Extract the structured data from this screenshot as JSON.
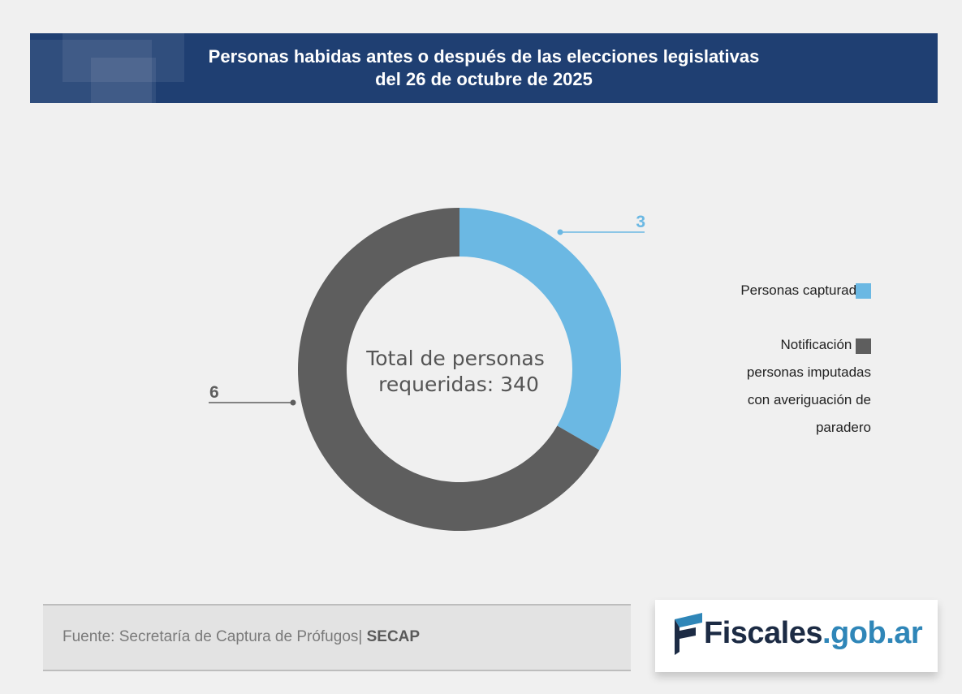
{
  "title": {
    "line1": "Personas habidas antes o después de las elecciones legislativas",
    "line2": "del 26 de octubre de 2025"
  },
  "chart_data": {
    "type": "pie",
    "donut": true,
    "center_label": {
      "line1": "Total de personas",
      "line2": "requeridas: 340"
    },
    "series": [
      {
        "name": "Personas capturadas",
        "value": 3,
        "label": "3",
        "color": "#6bb8e3"
      },
      {
        "name": "Notificación de personas imputadas con averiguación de paradero",
        "value": 6,
        "label": "6",
        "color": "#5e5e5e"
      }
    ]
  },
  "legend": {
    "items": [
      {
        "lines": [
          "Personas capturadas"
        ],
        "color": "#6bb8e3"
      },
      {
        "lines": [
          "Notificación de",
          "personas imputadas",
          "con averiguación de",
          "paradero"
        ],
        "color": "#5e5e5e"
      }
    ]
  },
  "source": {
    "text": "Fuente: Secretaría de Captura de Prófugos|",
    "bold": "SECAP"
  },
  "logo": {
    "main": "Fiscales",
    "domain": ".gob.ar",
    "icon": "flag-icon"
  }
}
